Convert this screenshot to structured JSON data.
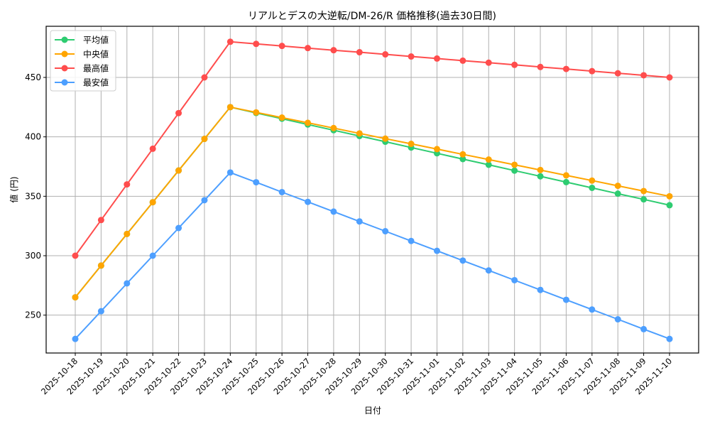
{
  "chart_data": {
    "type": "line",
    "title": "リアルとデスの大逆転/DM-26/R 価格推移(過去30日間)",
    "xlabel": "日付",
    "ylabel": "値 (円)",
    "ylim": [
      218,
      490
    ],
    "yticks": [
      250,
      300,
      350,
      400,
      450
    ],
    "grid": true,
    "legend_position": "upper left",
    "categories": [
      "2025-10-18",
      "2025-10-19",
      "2025-10-20",
      "2025-10-21",
      "2025-10-22",
      "2025-10-23",
      "2025-10-24",
      "2025-10-25",
      "2025-10-26",
      "2025-10-27",
      "2025-10-28",
      "2025-10-29",
      "2025-10-30",
      "2025-10-31",
      "2025-11-01",
      "2025-11-02",
      "2025-11-03",
      "2025-11-04",
      "2025-11-05",
      "2025-11-06",
      "2025-11-07",
      "2025-11-08",
      "2025-11-09",
      "2025-11-10"
    ],
    "series": [
      {
        "name": "平均値",
        "color": "#2ecc71",
        "values": [
          265,
          291.7,
          318.3,
          345,
          371.7,
          398.3,
          425,
          420.1,
          415.3,
          410.4,
          405.6,
          400.7,
          395.9,
          391.0,
          386.2,
          381.3,
          376.5,
          371.6,
          366.8,
          361.9,
          357.1,
          352.2,
          347.4,
          342.5
        ]
      },
      {
        "name": "中央値",
        "color": "#ffa500",
        "values": [
          265,
          291.7,
          318.3,
          345,
          371.7,
          398.3,
          425,
          420.6,
          416.2,
          411.8,
          407.4,
          402.9,
          398.5,
          394.1,
          389.7,
          385.3,
          380.9,
          376.5,
          372.1,
          367.6,
          363.2,
          358.8,
          354.4,
          350
        ]
      },
      {
        "name": "最高値",
        "color": "#ff4d4d",
        "values": [
          300,
          330,
          360,
          390,
          420,
          450,
          480,
          478.2,
          476.5,
          474.7,
          472.9,
          471.2,
          469.4,
          467.6,
          465.9,
          464.1,
          462.4,
          460.6,
          458.8,
          457.1,
          455.3,
          453.5,
          451.8,
          450
        ]
      },
      {
        "name": "最安値",
        "color": "#4d9fff",
        "values": [
          230,
          253.3,
          276.7,
          300,
          323.3,
          346.7,
          370,
          361.8,
          353.5,
          345.3,
          337.1,
          328.8,
          320.6,
          312.4,
          304.1,
          295.9,
          287.6,
          279.4,
          271.2,
          262.9,
          254.7,
          246.5,
          238.2,
          230
        ]
      }
    ]
  }
}
